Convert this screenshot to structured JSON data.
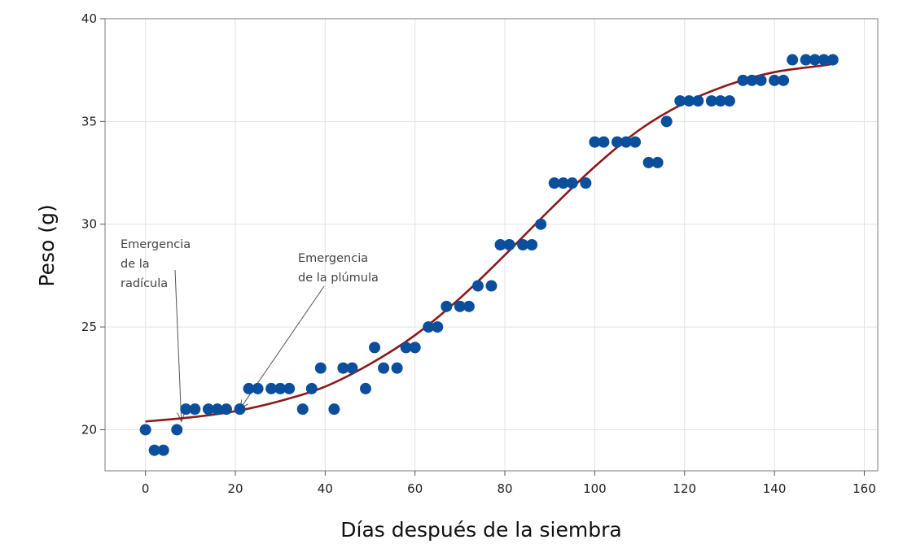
{
  "chart_data": {
    "type": "scatter",
    "title": "",
    "xlabel": "Días después de la siembra",
    "ylabel": "Peso (g)",
    "xlim": [
      -9,
      163
    ],
    "ylim": [
      18,
      40
    ],
    "xticks": [
      "0",
      "20",
      "40",
      "60",
      "80",
      "100",
      "120",
      "140",
      "160"
    ],
    "yticks": [
      "20",
      "25",
      "30",
      "35",
      "40"
    ],
    "grid": true,
    "legend": "none",
    "colors": {
      "points": "#0b4f9c",
      "fit": "#8b1a1a",
      "grid": "#e3e3e3",
      "frame": "#9a9a9a",
      "annotation": "#555555"
    },
    "points": {
      "x": [
        0,
        2,
        4,
        7,
        9,
        11,
        14,
        16,
        18,
        21,
        23,
        25,
        28,
        30,
        32,
        35,
        37,
        39,
        42,
        44,
        46,
        49,
        51,
        53,
        56,
        58,
        60,
        63,
        65,
        67,
        70,
        72,
        74,
        77,
        79,
        81,
        84,
        86,
        88,
        91,
        93,
        95,
        98,
        100,
        102,
        105,
        107,
        109,
        112,
        114,
        116,
        119,
        121,
        123,
        126,
        128,
        130,
        133,
        135,
        137,
        140,
        142,
        144,
        147,
        149,
        151,
        153
      ],
      "y": [
        20,
        19,
        19,
        20,
        21,
        21,
        21,
        21,
        21,
        21,
        22,
        22,
        22,
        22,
        22,
        21,
        22,
        23,
        21,
        23,
        23,
        22,
        24,
        23,
        23,
        24,
        24,
        25,
        25,
        26,
        26,
        26,
        27,
        27,
        29,
        29,
        29,
        29,
        30,
        32,
        32,
        32,
        32,
        34,
        34,
        34,
        34,
        34,
        33,
        33,
        35,
        36,
        36,
        36,
        36,
        36,
        36,
        37,
        37,
        37,
        37,
        37,
        38,
        38,
        38,
        38,
        38
      ]
    },
    "fit_curve": {
      "type": "sigmoid",
      "x": [
        0,
        10,
        20,
        30,
        40,
        50,
        60,
        70,
        80,
        90,
        100,
        110,
        120,
        130,
        140,
        150,
        153
      ],
      "y": [
        20.4,
        20.6,
        20.9,
        21.4,
        22.1,
        23.2,
        24.6,
        26.4,
        28.5,
        30.7,
        32.8,
        34.6,
        35.9,
        36.8,
        37.4,
        37.7,
        37.8
      ]
    },
    "annotations": [
      {
        "lines": [
          "Emergencia",
          "de la",
          "radícula"
        ],
        "target": [
          8,
          20.4
        ]
      },
      {
        "lines": [
          "Emergencia",
          "de la plúmula"
        ],
        "target": [
          21,
          21.0
        ]
      }
    ]
  }
}
